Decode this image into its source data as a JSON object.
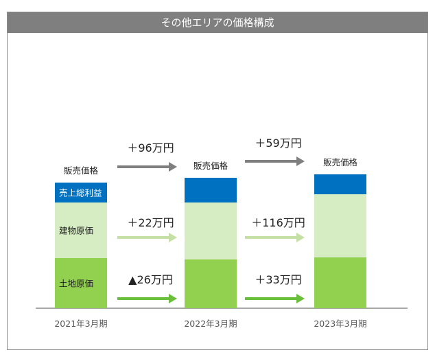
{
  "chart_data": {
    "type": "bar",
    "stacked": true,
    "title": "その他エリアの価格構成",
    "categories": [
      "2021年3月期",
      "2022年3月期",
      "2023年3月期"
    ],
    "series": [
      {
        "name": "土地原価",
        "color": "#92d050",
        "values": [
          73,
          71,
          74
        ]
      },
      {
        "name": "建物原価",
        "color": "#d6ecc2",
        "values": [
          81,
          83,
          92
        ]
      },
      {
        "name": "売上総利益",
        "color": "#0070c0",
        "values": [
          29,
          36,
          29
        ]
      }
    ],
    "total_label": "販売価格",
    "value_units": "relative (unlabeled axis, estimated)",
    "ylim": [
      0,
      200
    ],
    "grid": false,
    "changes": [
      {
        "from": "2021年3月期",
        "to": "2022年3月期",
        "total": "＋96万円",
        "building": "＋22万円",
        "land": "▲26万円"
      },
      {
        "from": "2022年3月期",
        "to": "2023年3月期",
        "total": "＋59万円",
        "building": "＋116万円",
        "land": "＋33万円"
      }
    ],
    "arrow_colors": {
      "total": "#7f7f7f",
      "building": "#c5e0a5",
      "land": "#6abf3a"
    }
  }
}
